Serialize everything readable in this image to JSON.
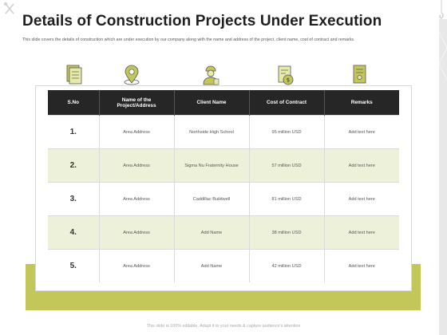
{
  "title": "Details of Construction Projects Under Execution",
  "subtitle": "This slide covers the details of construction which are under execution by our company along with the name and address of the project, client name, cost of contract and remarks.",
  "colors": {
    "accent": "#c3c75a",
    "header_bg": "#262626",
    "alt_row": "#eef1d9"
  },
  "icons": [
    "document-list-icon",
    "location-pin-icon",
    "worker-icon",
    "contract-money-icon",
    "remarks-document-icon"
  ],
  "table": {
    "headers": [
      "S.No",
      "Name of the Project/Address",
      "Client Name",
      "Cost of Contract",
      "Remarks"
    ],
    "rows": [
      [
        "1.",
        "Area Address",
        "Northside High School",
        "95 million USD",
        "Add text here"
      ],
      [
        "2.",
        "Area Address",
        "Sigma Nu Fraternity House",
        "57 million USD",
        "Add text here"
      ],
      [
        "3.",
        "Area Address",
        "Caddillac Buildwell",
        "81 million USD",
        "Add text here"
      ],
      [
        "4.",
        "Area Address",
        "Add Name",
        "38 million USD",
        "Add text here"
      ],
      [
        "5.",
        "Area Address",
        "Add Name",
        "42 million USD",
        "Add text here"
      ]
    ]
  },
  "footer": "This slide is 100% editable. Adapt it to your needs & capture audience's attention"
}
